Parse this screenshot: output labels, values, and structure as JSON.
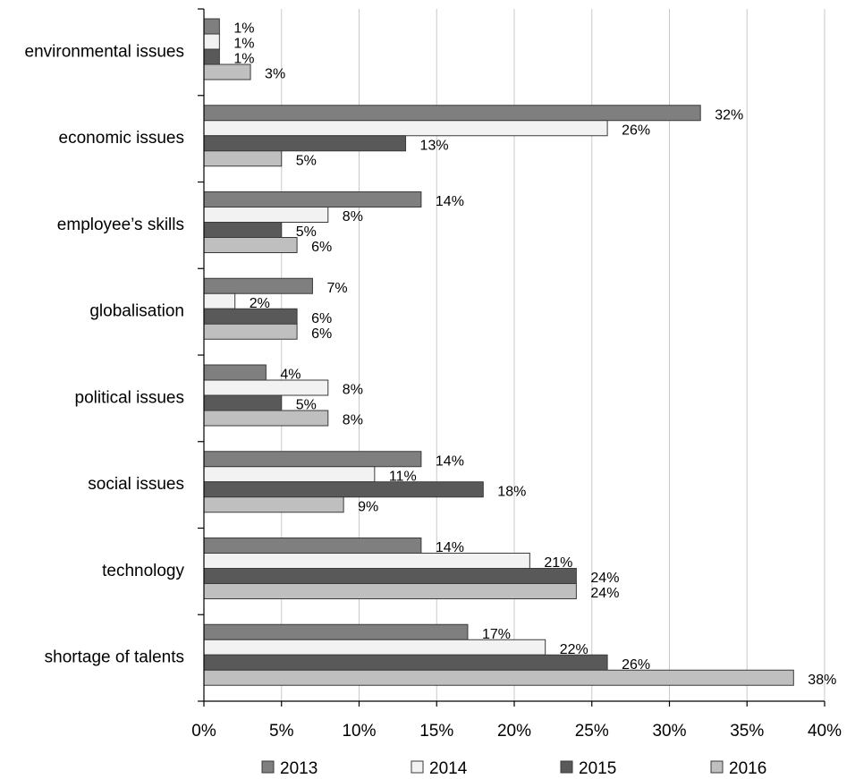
{
  "chart_data": {
    "type": "bar",
    "orientation": "horizontal",
    "title": "",
    "xlabel": "",
    "ylabel": "",
    "xlim": [
      0,
      40
    ],
    "x_ticks": [
      "0%",
      "5%",
      "10%",
      "15%",
      "20%",
      "25%",
      "30%",
      "35%",
      "40%"
    ],
    "grid": "vertical",
    "legend_position": "bottom",
    "categories": [
      "environmental issues",
      "economic issues",
      "employee’s skills",
      "globalisation",
      "political issues",
      "social issues",
      "technology",
      "shortage of talents"
    ],
    "series": [
      {
        "name": "2013",
        "color": "#7f7f7f",
        "values": [
          1,
          32,
          14,
          7,
          4,
          14,
          14,
          17
        ]
      },
      {
        "name": "2014",
        "color": "#f2f2f2",
        "values": [
          1,
          26,
          8,
          2,
          8,
          11,
          21,
          22
        ]
      },
      {
        "name": "2015",
        "color": "#595959",
        "values": [
          1,
          13,
          5,
          6,
          5,
          18,
          24,
          26
        ]
      },
      {
        "name": "2016",
        "color": "#bfbfbf",
        "values": [
          3,
          5,
          6,
          6,
          8,
          9,
          24,
          38
        ]
      }
    ],
    "value_suffix": "%"
  }
}
